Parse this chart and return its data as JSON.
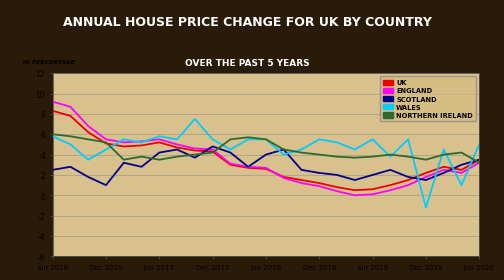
{
  "title": "ANNUAL HOUSE PRICE CHANGE FOR UK BY COUNTRY",
  "subtitle": "OVER THE PAST 5 YEARS",
  "ylabel": "IN PERCENTAGE",
  "title_bg": "#1a1a1a",
  "subtitle_bg": "#c8a020",
  "chart_overlay": "#e8d8a0",
  "x_labels": [
    "Jun 2016",
    "Dec 2016",
    "Jun 2017",
    "Dec 2017",
    "Jun 2018",
    "Dec 2018",
    "Jun 2019",
    "Dec 2019",
    "Jun 2020"
  ],
  "ylim": [
    -6,
    12
  ],
  "yticks": [
    -6,
    -4,
    -2,
    0,
    2,
    4,
    6,
    8,
    10,
    12
  ],
  "series": {
    "UK": {
      "color": "#ee0000",
      "lw": 1.3,
      "data": [
        8.3,
        7.8,
        6.2,
        5.1,
        4.8,
        4.9,
        5.2,
        4.7,
        4.4,
        4.3,
        3.0,
        2.7,
        2.6,
        1.8,
        1.5,
        1.2,
        0.8,
        0.5,
        0.6,
        1.0,
        1.5,
        2.2,
        2.8,
        2.5,
        3.5
      ]
    },
    "ENGLAND": {
      "color": "#ff00ff",
      "lw": 1.3,
      "data": [
        9.2,
        8.7,
        6.8,
        5.5,
        5.2,
        5.3,
        5.5,
        5.0,
        4.6,
        4.5,
        3.1,
        2.8,
        2.7,
        1.7,
        1.2,
        0.9,
        0.4,
        0.0,
        0.1,
        0.5,
        1.0,
        1.8,
        2.5,
        2.2,
        3.2
      ]
    },
    "SCOTLAND": {
      "color": "#00008b",
      "lw": 1.3,
      "data": [
        2.5,
        2.8,
        1.8,
        1.0,
        3.2,
        2.8,
        4.2,
        4.5,
        3.7,
        4.8,
        4.2,
        2.8,
        4.0,
        4.5,
        2.5,
        2.2,
        2.0,
        1.5,
        2.0,
        2.5,
        1.8,
        1.5,
        2.2,
        3.0,
        3.5
      ]
    },
    "WALES": {
      "color": "#00ccff",
      "lw": 1.3,
      "data": [
        5.8,
        5.0,
        3.5,
        4.5,
        5.5,
        5.2,
        5.8,
        5.5,
        7.5,
        5.5,
        4.5,
        5.5,
        5.5,
        4.0,
        4.5,
        5.5,
        5.2,
        4.5,
        5.5,
        3.8,
        5.5,
        -1.2,
        4.5,
        1.0,
        5.0
      ]
    },
    "NORTHERN IRELAND": {
      "color": "#2d6a2d",
      "lw": 1.3,
      "data": [
        6.0,
        5.8,
        5.5,
        5.2,
        3.5,
        3.8,
        3.5,
        3.8,
        4.0,
        4.2,
        5.5,
        5.7,
        5.5,
        4.5,
        4.2,
        4.0,
        3.8,
        3.7,
        3.8,
        4.0,
        3.8,
        3.5,
        4.0,
        4.2,
        3.2
      ]
    }
  },
  "n_points": 25
}
